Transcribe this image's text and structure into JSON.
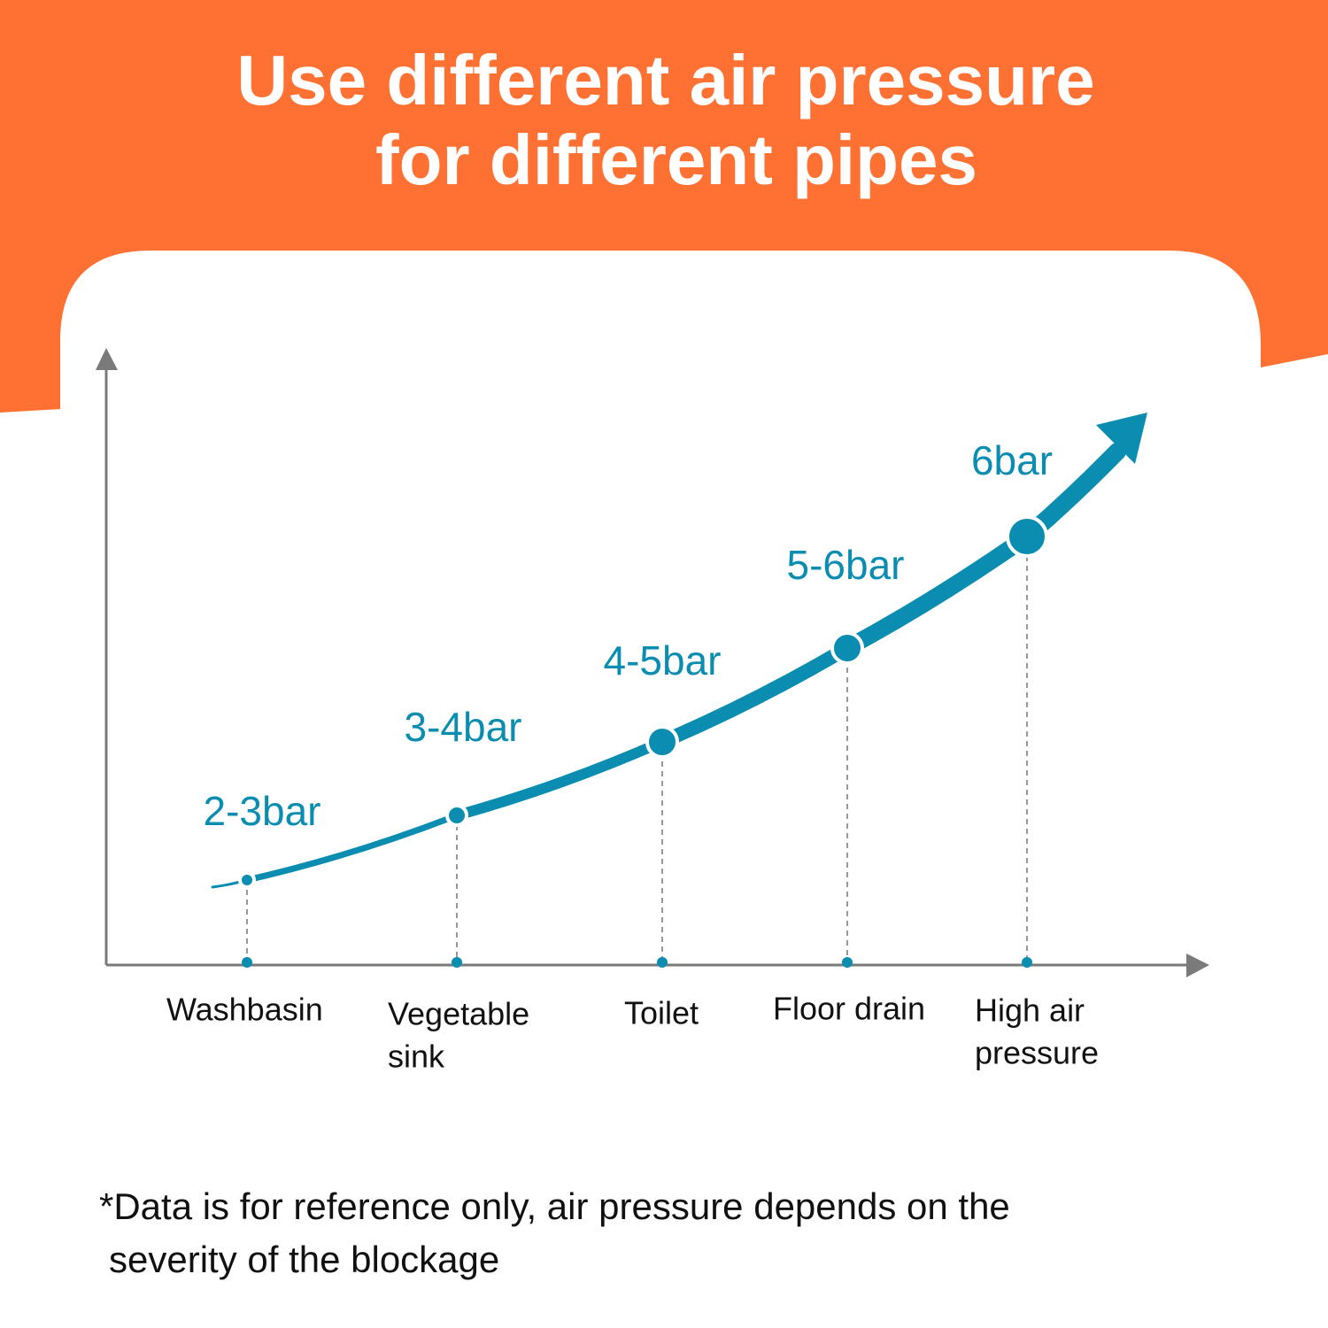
{
  "title": [
    "Use different air pressure",
    "for different pipes"
  ],
  "points": [
    {
      "label": "2-3bar",
      "category": [
        "Washbasin"
      ]
    },
    {
      "label": "3-4bar",
      "category": [
        "Vegetable",
        "sink"
      ]
    },
    {
      "label": "4-5bar",
      "category": [
        "Toilet"
      ]
    },
    {
      "label": "5-6bar",
      "category": [
        "Floor drain"
      ]
    },
    {
      "label": "6bar",
      "category": [
        "High air",
        "pressure"
      ]
    }
  ],
  "footnote": [
    "*Data is for reference only, air pressure depends on the",
    "severity of the blockage"
  ]
}
